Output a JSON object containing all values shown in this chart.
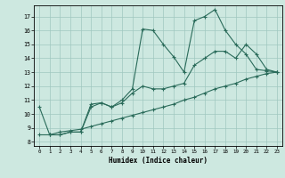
{
  "xlabel": "Humidex (Indice chaleur)",
  "background_color": "#cde8e0",
  "grid_color": "#a0c8c0",
  "line_color": "#2a6b5a",
  "xlim": [
    -0.5,
    23.5
  ],
  "ylim": [
    7.7,
    17.8
  ],
  "yticks": [
    8,
    9,
    10,
    11,
    12,
    13,
    14,
    15,
    16,
    17
  ],
  "xticks": [
    0,
    1,
    2,
    3,
    4,
    5,
    6,
    7,
    8,
    9,
    10,
    11,
    12,
    13,
    14,
    15,
    16,
    17,
    18,
    19,
    20,
    21,
    22,
    23
  ],
  "line1_x": [
    0,
    1,
    2,
    3,
    4,
    5,
    6,
    7,
    8,
    9,
    10,
    11,
    12,
    13,
    14,
    15,
    16,
    17,
    18,
    19,
    20,
    21,
    22,
    23
  ],
  "line1_y": [
    10.5,
    8.5,
    8.5,
    8.7,
    8.7,
    10.7,
    10.8,
    10.5,
    11.0,
    11.8,
    16.1,
    16.0,
    15.0,
    14.1,
    13.0,
    16.7,
    17.0,
    17.5,
    16.0,
    15.0,
    14.3,
    13.2,
    13.1,
    13.0
  ],
  "line2_x": [
    1,
    2,
    3,
    4,
    5,
    6,
    7,
    8,
    9,
    10,
    11,
    12,
    13,
    14,
    15,
    16,
    17,
    18,
    19,
    20,
    21,
    22,
    23
  ],
  "line2_y": [
    8.5,
    8.5,
    8.7,
    8.7,
    10.5,
    10.8,
    10.5,
    10.8,
    11.5,
    12.0,
    11.8,
    11.8,
    12.0,
    12.2,
    13.5,
    14.0,
    14.5,
    14.5,
    14.0,
    15.0,
    14.3,
    13.2,
    13.0
  ],
  "line3_x": [
    0,
    1,
    2,
    3,
    4,
    5,
    6,
    7,
    8,
    9,
    10,
    11,
    12,
    13,
    14,
    15,
    16,
    17,
    18,
    19,
    20,
    21,
    22,
    23
  ],
  "line3_y": [
    8.5,
    8.5,
    8.7,
    8.8,
    8.9,
    9.1,
    9.3,
    9.5,
    9.7,
    9.9,
    10.1,
    10.3,
    10.5,
    10.7,
    11.0,
    11.2,
    11.5,
    11.8,
    12.0,
    12.2,
    12.5,
    12.7,
    12.9,
    13.0
  ]
}
